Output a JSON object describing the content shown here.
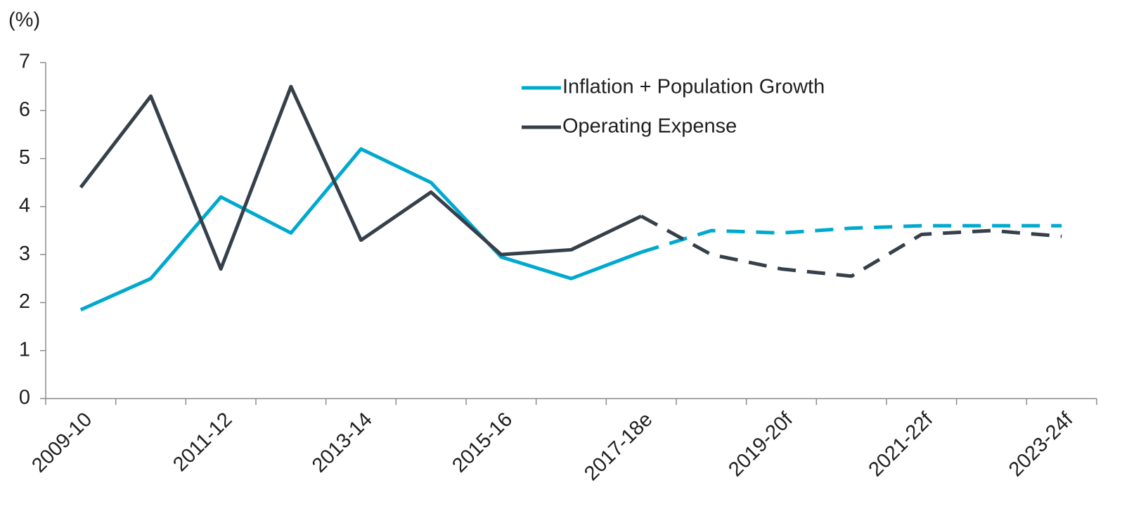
{
  "chart_data": {
    "type": "line",
    "y_label": "(%)",
    "categories": [
      "2009-10",
      null,
      "2011-12",
      null,
      "2013-14",
      null,
      "2015-16",
      null,
      "2017-18e",
      null,
      "2019-20f",
      null,
      "2021-22f",
      null,
      "2023-24f"
    ],
    "series": [
      {
        "name": "Inflation + Population Growth",
        "color": "#00a9ce",
        "values": [
          1.85,
          2.5,
          4.2,
          3.45,
          5.2,
          4.5,
          2.95,
          2.5,
          3.05,
          3.5,
          3.45,
          3.55,
          3.6,
          3.6,
          3.6
        ]
      },
      {
        "name": "Operating Expense",
        "color": "#36404a",
        "values": [
          4.4,
          6.3,
          2.7,
          6.5,
          3.3,
          4.3,
          3.0,
          3.1,
          3.8,
          3.0,
          2.7,
          2.55,
          3.42,
          3.5,
          3.38
        ]
      }
    ],
    "dashed_from": 8,
    "ylim": [
      0,
      7
    ],
    "yticks": [
      0,
      1,
      2,
      3,
      4,
      5,
      6,
      7
    ],
    "legend": "top-center"
  }
}
